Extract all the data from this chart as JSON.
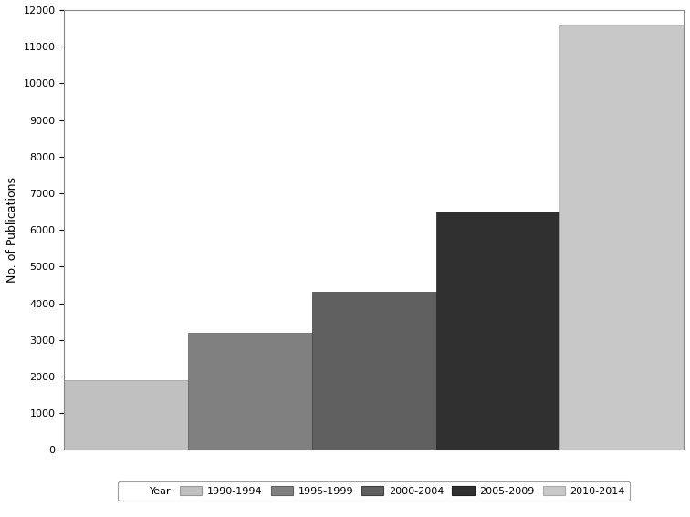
{
  "categories": [
    "1990-1994",
    "1995-1999",
    "2000-2004",
    "2005-2009",
    "2010-2014"
  ],
  "values": [
    1900,
    3200,
    4300,
    6500,
    11600
  ],
  "bar_colors": [
    "#c0c0c0",
    "#808080",
    "#606060",
    "#303030",
    "#c8c8c8"
  ],
  "bar_edgecolors": [
    "#999999",
    "#606060",
    "#404040",
    "#202020",
    "#aaaaaa"
  ],
  "ylabel": "No. of Publications",
  "ylim": [
    0,
    12000
  ],
  "yticks": [
    0,
    1000,
    2000,
    3000,
    4000,
    5000,
    6000,
    7000,
    8000,
    9000,
    10000,
    11000,
    12000
  ],
  "legend_label": "Year",
  "background_color": "#ffffff",
  "bar_width": 1.0
}
